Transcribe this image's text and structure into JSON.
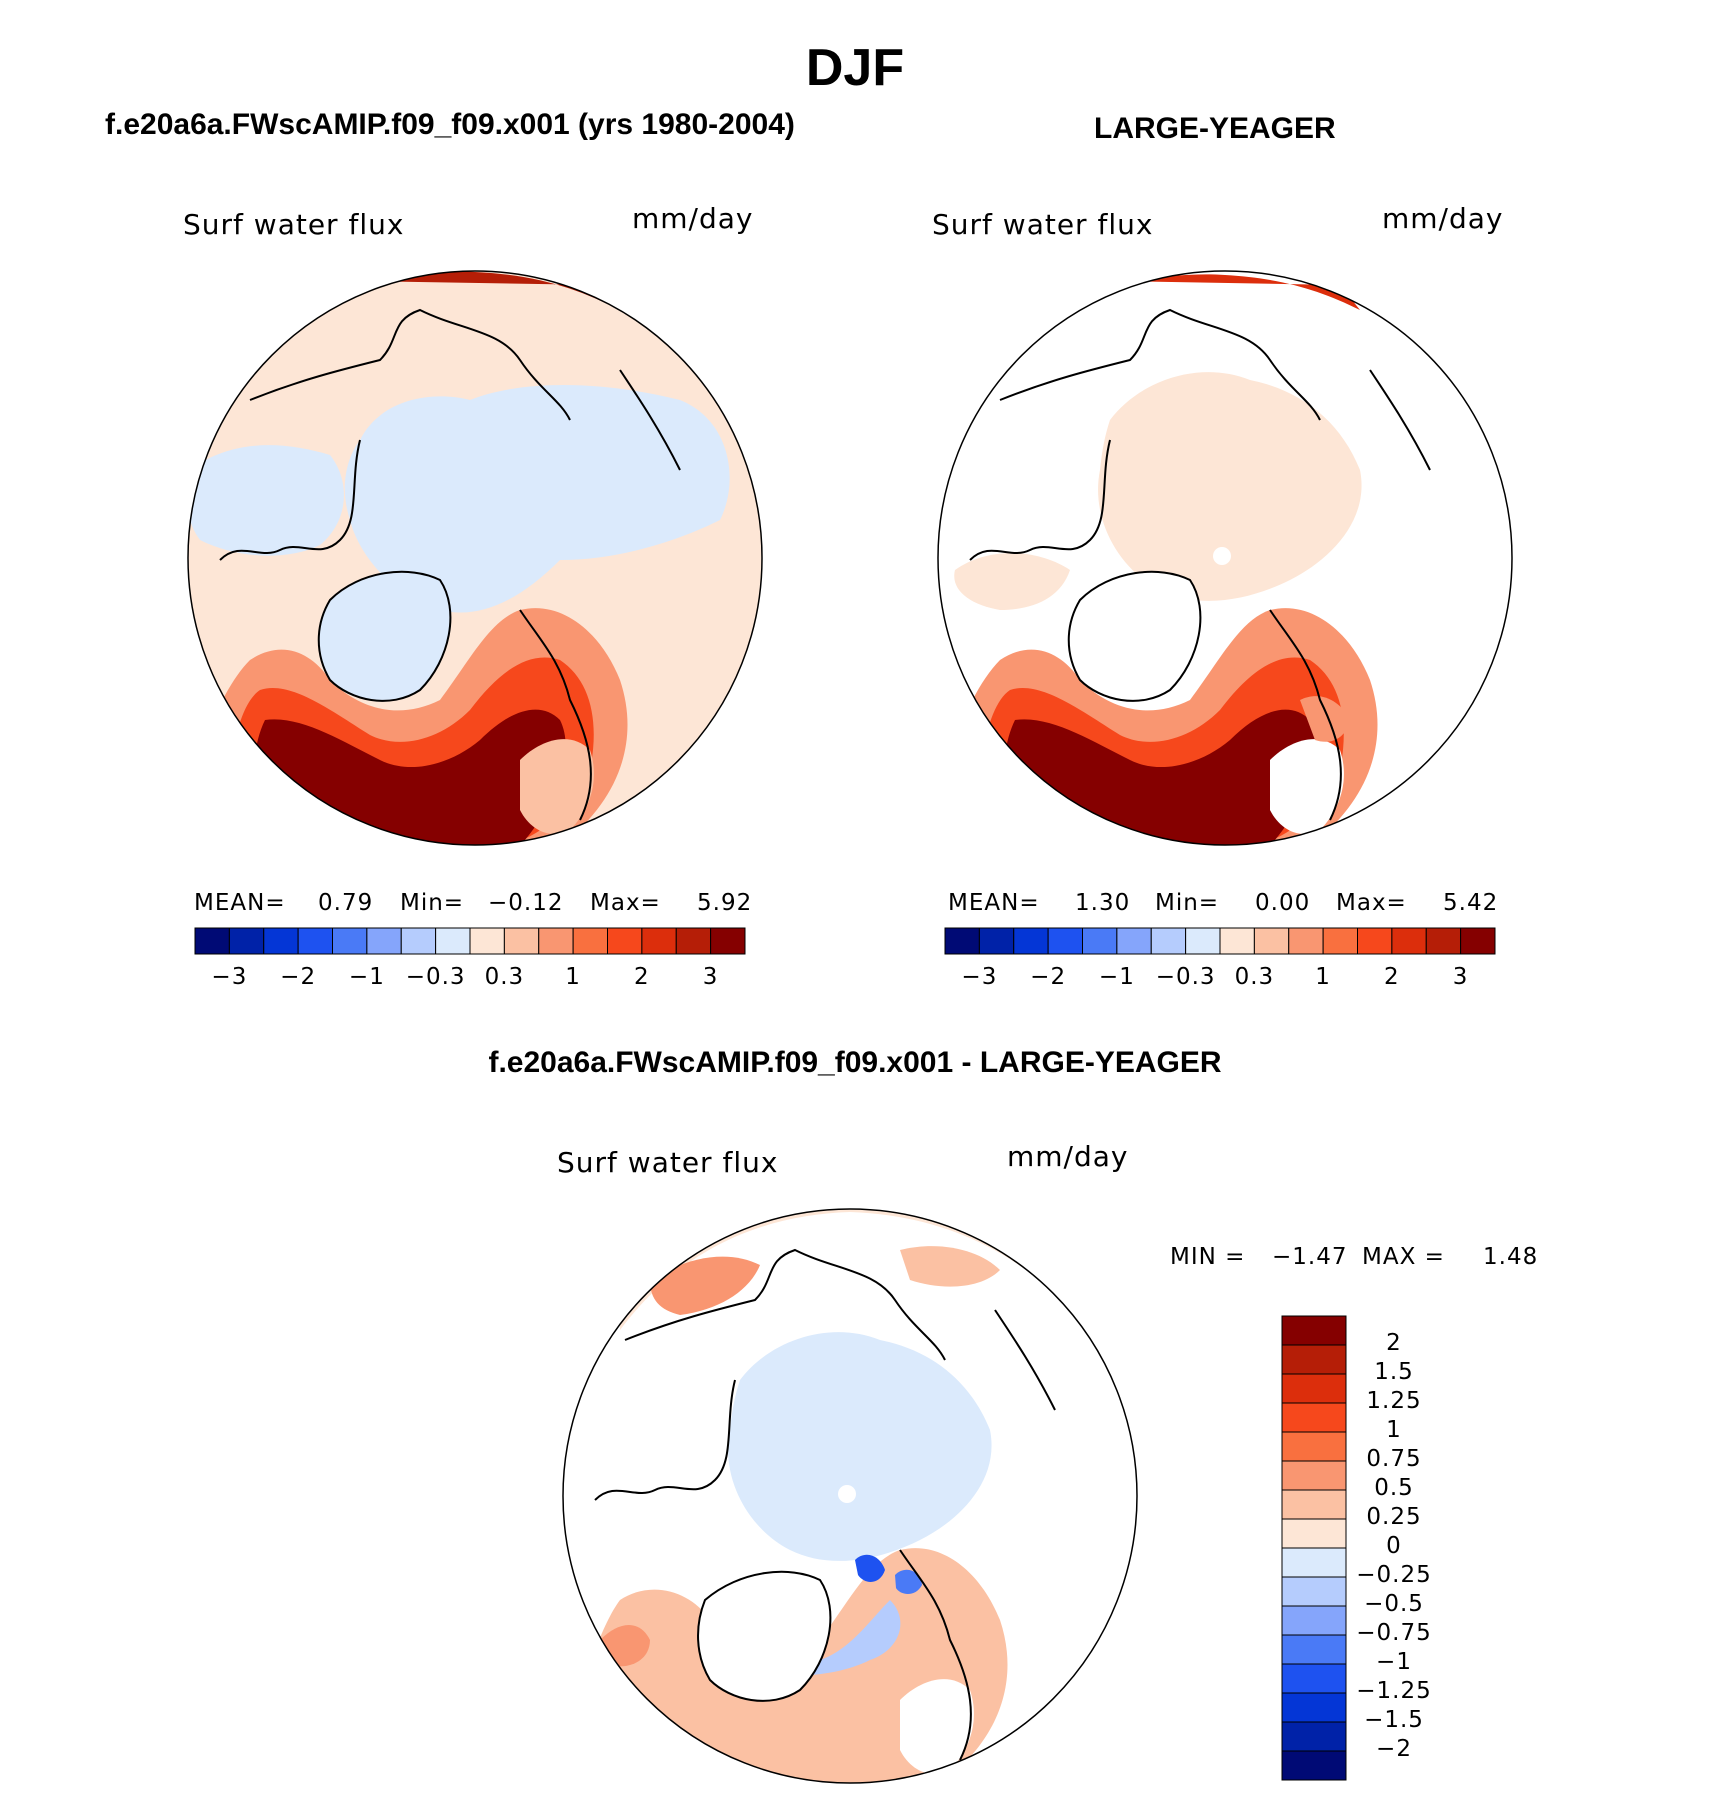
{
  "figure": {
    "title": "DJF",
    "subtitle_left": "f.e20a6a.FWscAMIP.f09_f09.x001 (yrs 1980-2004)",
    "subtitle_right": "LARGE-YEAGER",
    "subtitle_bottom": "f.e20a6a.FWscAMIP.f09_f09.x001 - LARGE-YEAGER"
  },
  "panels": {
    "left": {
      "label": "Surf water flux",
      "units": "mm/day",
      "mean_label": "MEAN=",
      "mean": "0.79",
      "min_label": "Min=",
      "min": "−0.12",
      "max_label": "Max=",
      "max": "5.92"
    },
    "right": {
      "label": "Surf water flux",
      "units": "mm/day",
      "mean_label": "MEAN=",
      "mean": "1.30",
      "min_label": "Min=",
      "min": "0.00",
      "max_label": "Max=",
      "max": "5.42"
    },
    "diff": {
      "label": "Surf water flux",
      "units": "mm/day",
      "min_label": "MIN =",
      "min": "−1.47",
      "max_label": "MAX =",
      "max": "1.48"
    }
  },
  "chart_data": [
    {
      "type": "heatmap",
      "projection": "north polar stereographic",
      "title": "Surf water flux",
      "units": "mm/day",
      "season": "DJF",
      "case": "f.e20a6a.FWscAMIP.f09_f09.x001 (yrs 1980-2004)",
      "stats": {
        "mean": 0.79,
        "min": -0.12,
        "max": 5.92
      },
      "colorbar": {
        "orientation": "horizontal",
        "tick_labels": [
          "−3",
          "−2",
          "−1",
          "−0.3",
          "0.3",
          "1",
          "2",
          "3"
        ],
        "colors": [
          "#000a75",
          "#0022a8",
          "#0436d6",
          "#1e52f0",
          "#4a7af6",
          "#85a5fb",
          "#b5ccfd",
          "#dbeafc",
          "#fde6d6",
          "#fbc1a3",
          "#f99671",
          "#f9703f",
          "#f6481c",
          "#dc2e0c",
          "#b51e07",
          "#850000"
        ]
      }
    },
    {
      "type": "heatmap",
      "projection": "north polar stereographic",
      "title": "Surf water flux",
      "units": "mm/day",
      "season": "DJF",
      "case": "LARGE-YEAGER",
      "stats": {
        "mean": 1.3,
        "min": 0.0,
        "max": 5.42
      },
      "colorbar": {
        "orientation": "horizontal",
        "tick_labels": [
          "−3",
          "−2",
          "−1",
          "−0.3",
          "0.3",
          "1",
          "2",
          "3"
        ],
        "colors": [
          "#000a75",
          "#0022a8",
          "#0436d6",
          "#1e52f0",
          "#4a7af6",
          "#85a5fb",
          "#b5ccfd",
          "#dbeafc",
          "#fde6d6",
          "#fbc1a3",
          "#f99671",
          "#f9703f",
          "#f6481c",
          "#dc2e0c",
          "#b51e07",
          "#850000"
        ]
      }
    },
    {
      "type": "heatmap",
      "projection": "north polar stereographic",
      "title": "Surf water flux",
      "units": "mm/day",
      "season": "DJF",
      "case": "f.e20a6a.FWscAMIP.f09_f09.x001 - LARGE-YEAGER",
      "stats": {
        "min": -1.47,
        "max": 1.48
      },
      "colorbar": {
        "orientation": "vertical",
        "tick_labels": [
          "2",
          "1.5",
          "1.25",
          "1",
          "0.75",
          "0.5",
          "0.25",
          "0",
          "−0.25",
          "−0.5",
          "−0.75",
          "−1",
          "−1.25",
          "−1.5",
          "−2"
        ],
        "colors_top_to_bottom": [
          "#850000",
          "#b51e07",
          "#dc2e0c",
          "#f6481c",
          "#f9703f",
          "#f99671",
          "#fbc1a3",
          "#fde6d6",
          "#dbeafc",
          "#b5ccfd",
          "#85a5fb",
          "#4a7af6",
          "#1e52f0",
          "#0436d6",
          "#0022a8",
          "#000a75"
        ]
      }
    }
  ]
}
